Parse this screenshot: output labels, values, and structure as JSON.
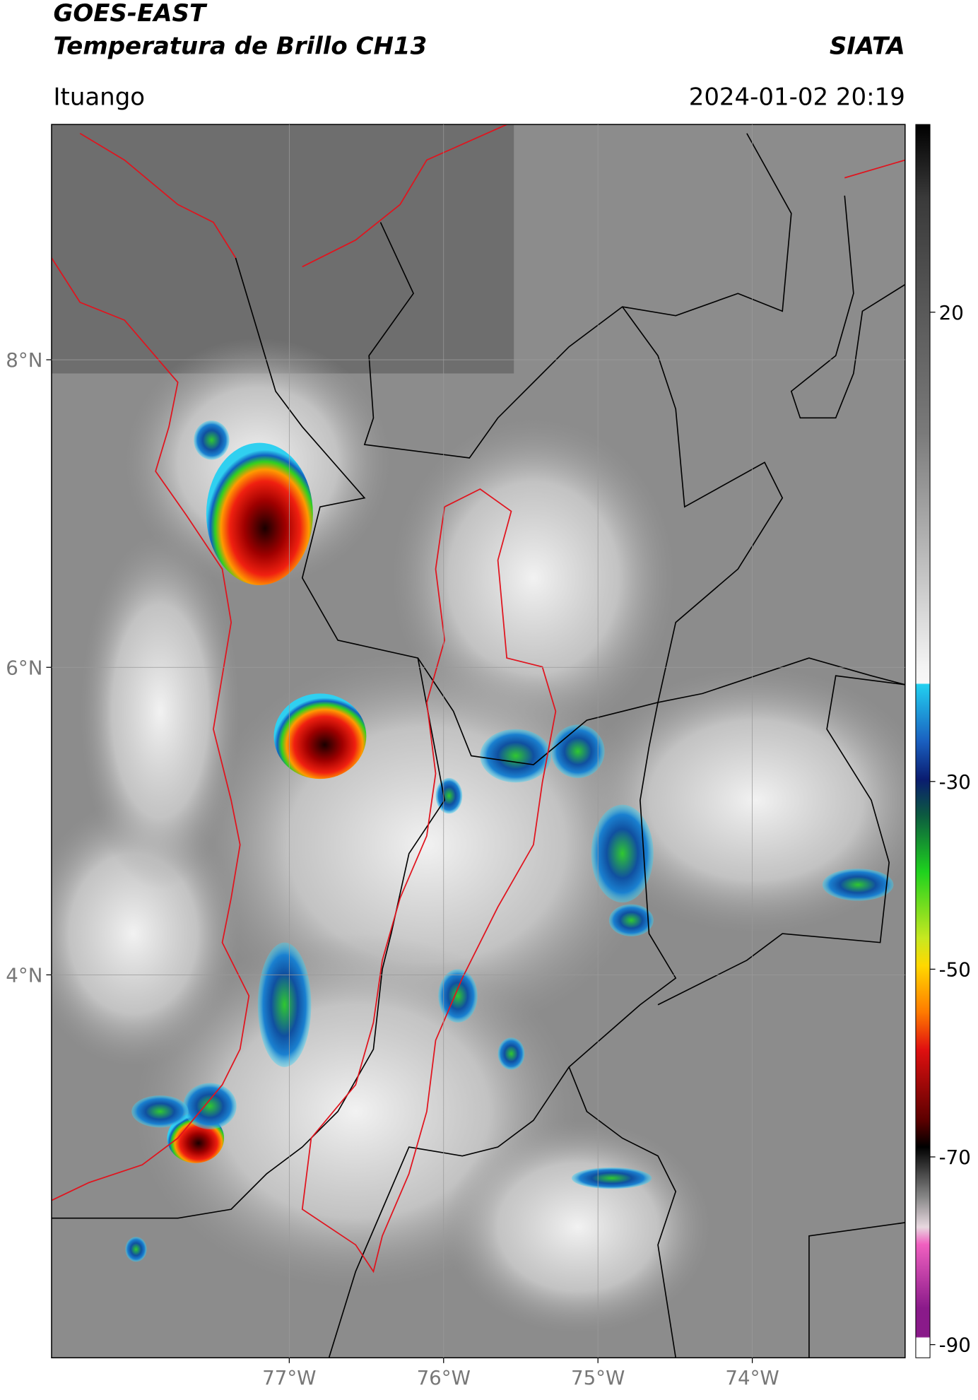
{
  "header": {
    "title": "GOES-EAST",
    "subtitle": "Temperatura de Brillo CH13",
    "brand": "SIATA",
    "location": "Ituango",
    "timestamp": "2024-01-02 20:19"
  },
  "map": {
    "xlim": [
      -78.54,
      -73.01
    ],
    "ylim": [
      1.51,
      9.53
    ],
    "xticks": [
      {
        "value": -77,
        "label": "77°W"
      },
      {
        "value": -76,
        "label": "76°W"
      },
      {
        "value": -75,
        "label": "75°W"
      },
      {
        "value": -74,
        "label": "74°W"
      }
    ],
    "yticks": [
      {
        "value": 8,
        "label": "8°N"
      },
      {
        "value": 6,
        "label": "6°N"
      },
      {
        "value": 4,
        "label": "4°N"
      }
    ],
    "grid": true
  },
  "colorbar": {
    "lim": [
      -91.4,
      40
    ],
    "ticks": [
      20,
      -30,
      -50,
      -70,
      -90
    ]
  }
}
